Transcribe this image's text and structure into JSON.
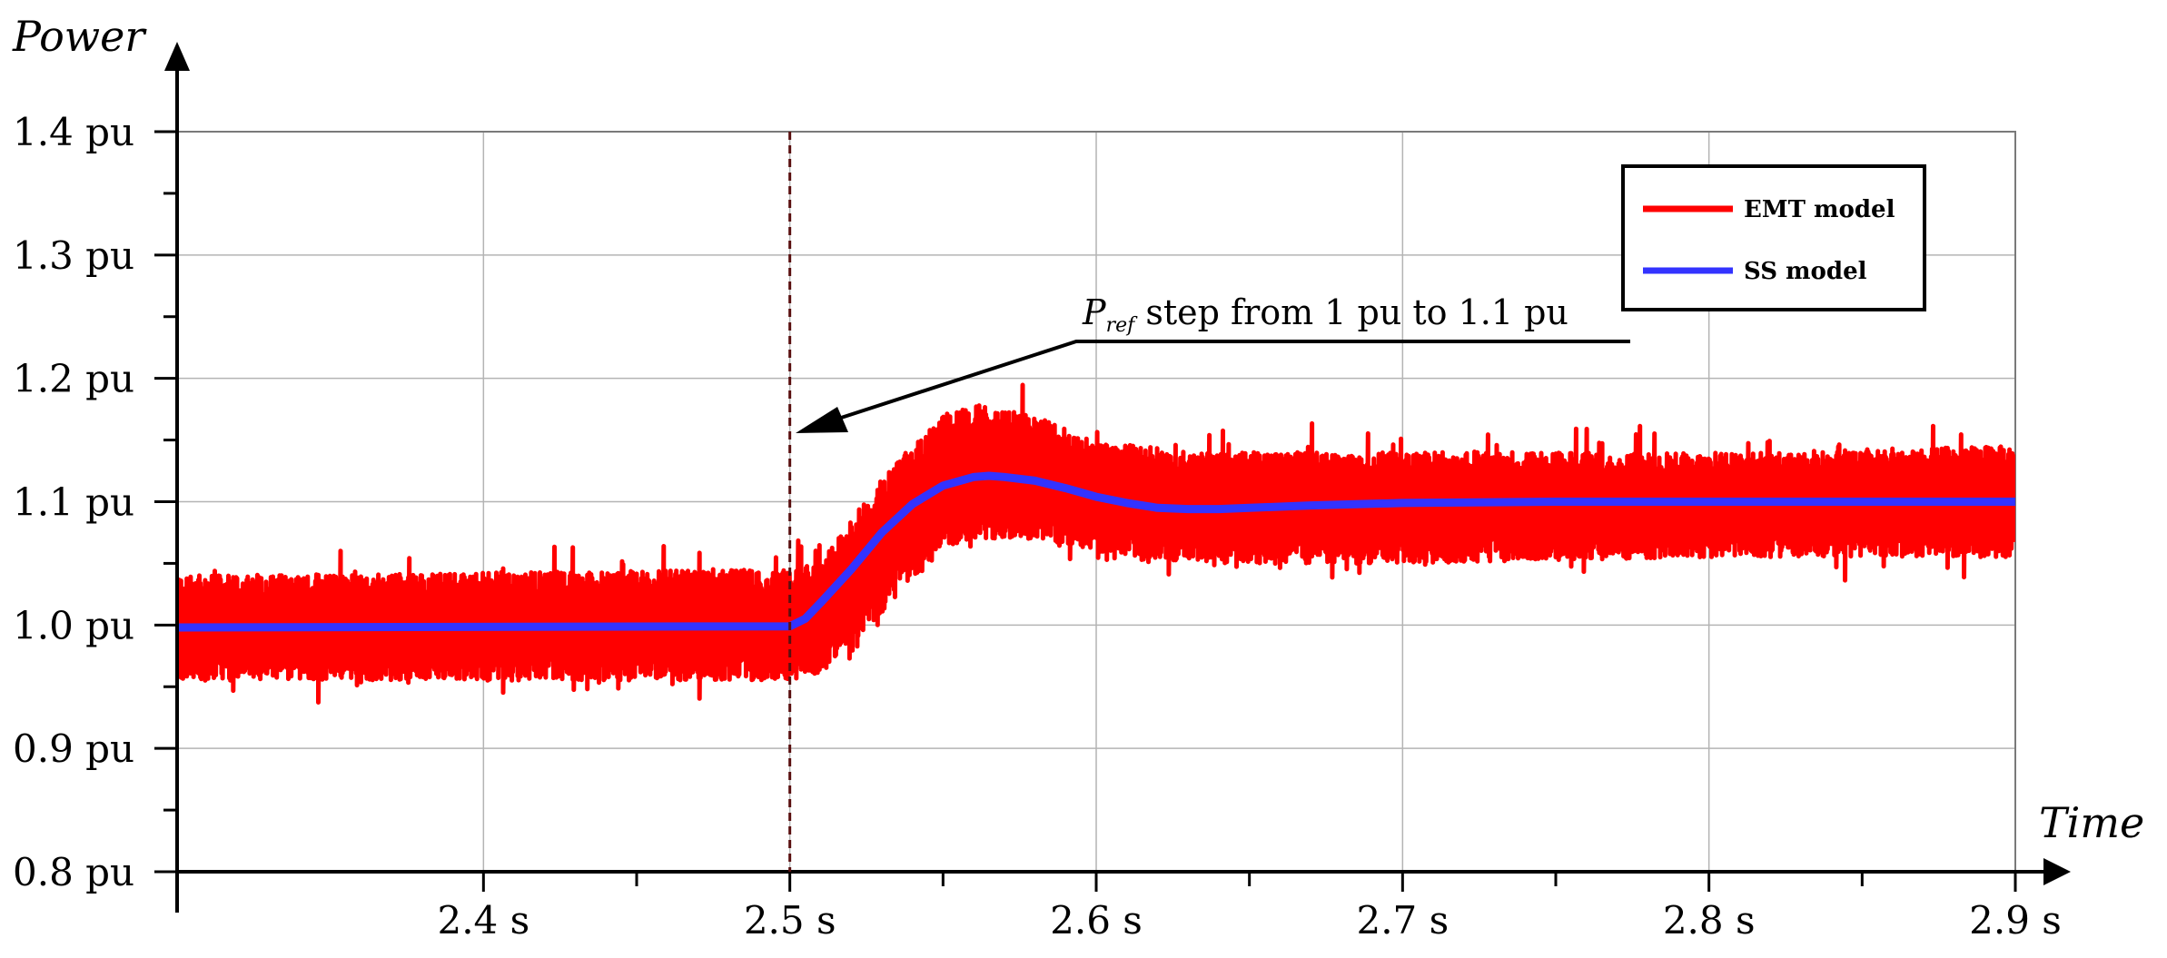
{
  "chart_data": {
    "type": "line",
    "xlabel": "Time",
    "ylabel": "Power",
    "xlim": [
      2.3,
      2.9
    ],
    "ylim": [
      0.8,
      1.4
    ],
    "x_ticks": [
      {
        "value": 2.4,
        "label": "2.4 s"
      },
      {
        "value": 2.5,
        "label": "2.5 s"
      },
      {
        "value": 2.6,
        "label": "2.6 s"
      },
      {
        "value": 2.7,
        "label": "2.7 s"
      },
      {
        "value": 2.8,
        "label": "2.8 s"
      },
      {
        "value": 2.9,
        "label": "2.9 s"
      }
    ],
    "y_ticks": [
      {
        "value": 0.8,
        "label": "0.8 pu"
      },
      {
        "value": 0.9,
        "label": "0.9 pu"
      },
      {
        "value": 1.0,
        "label": "1.0 pu"
      },
      {
        "value": 1.1,
        "label": "1.1 pu"
      },
      {
        "value": 1.2,
        "label": "1.2 pu"
      },
      {
        "value": 1.3,
        "label": "1.3 pu"
      },
      {
        "value": 1.4,
        "label": "1.4 pu"
      }
    ],
    "grid": true,
    "legend": {
      "position": "top-right",
      "entries": [
        {
          "label": "EMT model",
          "color": "#ff0000"
        },
        {
          "label": "SS model",
          "color": "#3333ff"
        }
      ]
    },
    "annotation": {
      "text_symbol": "P",
      "text_subscript": "ref",
      "text_rest": " step from 1 pu to 1.1 pu",
      "x": 2.5
    },
    "series": [
      {
        "name": "EMT model",
        "color": "#ff0000",
        "style": "noisy band",
        "band_x": [
          2.3,
          2.5,
          2.51,
          2.53,
          2.55,
          2.56,
          2.58,
          2.6,
          2.63,
          2.66,
          2.7,
          2.8,
          2.9
        ],
        "band_upper": [
          1.04,
          1.045,
          1.05,
          1.12,
          1.17,
          1.18,
          1.17,
          1.15,
          1.14,
          1.14,
          1.14,
          1.14,
          1.145
        ],
        "band_lower": [
          0.955,
          0.955,
          0.96,
          1.01,
          1.06,
          1.07,
          1.07,
          1.06,
          1.05,
          1.05,
          1.05,
          1.055,
          1.055
        ]
      },
      {
        "name": "SS model",
        "color": "#3333ff",
        "x": [
          2.3,
          2.5,
          2.505,
          2.51,
          2.52,
          2.53,
          2.54,
          2.55,
          2.56,
          2.565,
          2.57,
          2.58,
          2.59,
          2.6,
          2.61,
          2.62,
          2.63,
          2.64,
          2.65,
          2.67,
          2.7,
          2.75,
          2.8,
          2.9
        ],
        "y": [
          0.998,
          0.999,
          1.005,
          1.018,
          1.045,
          1.075,
          1.098,
          1.113,
          1.12,
          1.121,
          1.12,
          1.117,
          1.111,
          1.104,
          1.099,
          1.095,
          1.094,
          1.094,
          1.095,
          1.097,
          1.099,
          1.1,
          1.1,
          1.1
        ]
      }
    ]
  }
}
